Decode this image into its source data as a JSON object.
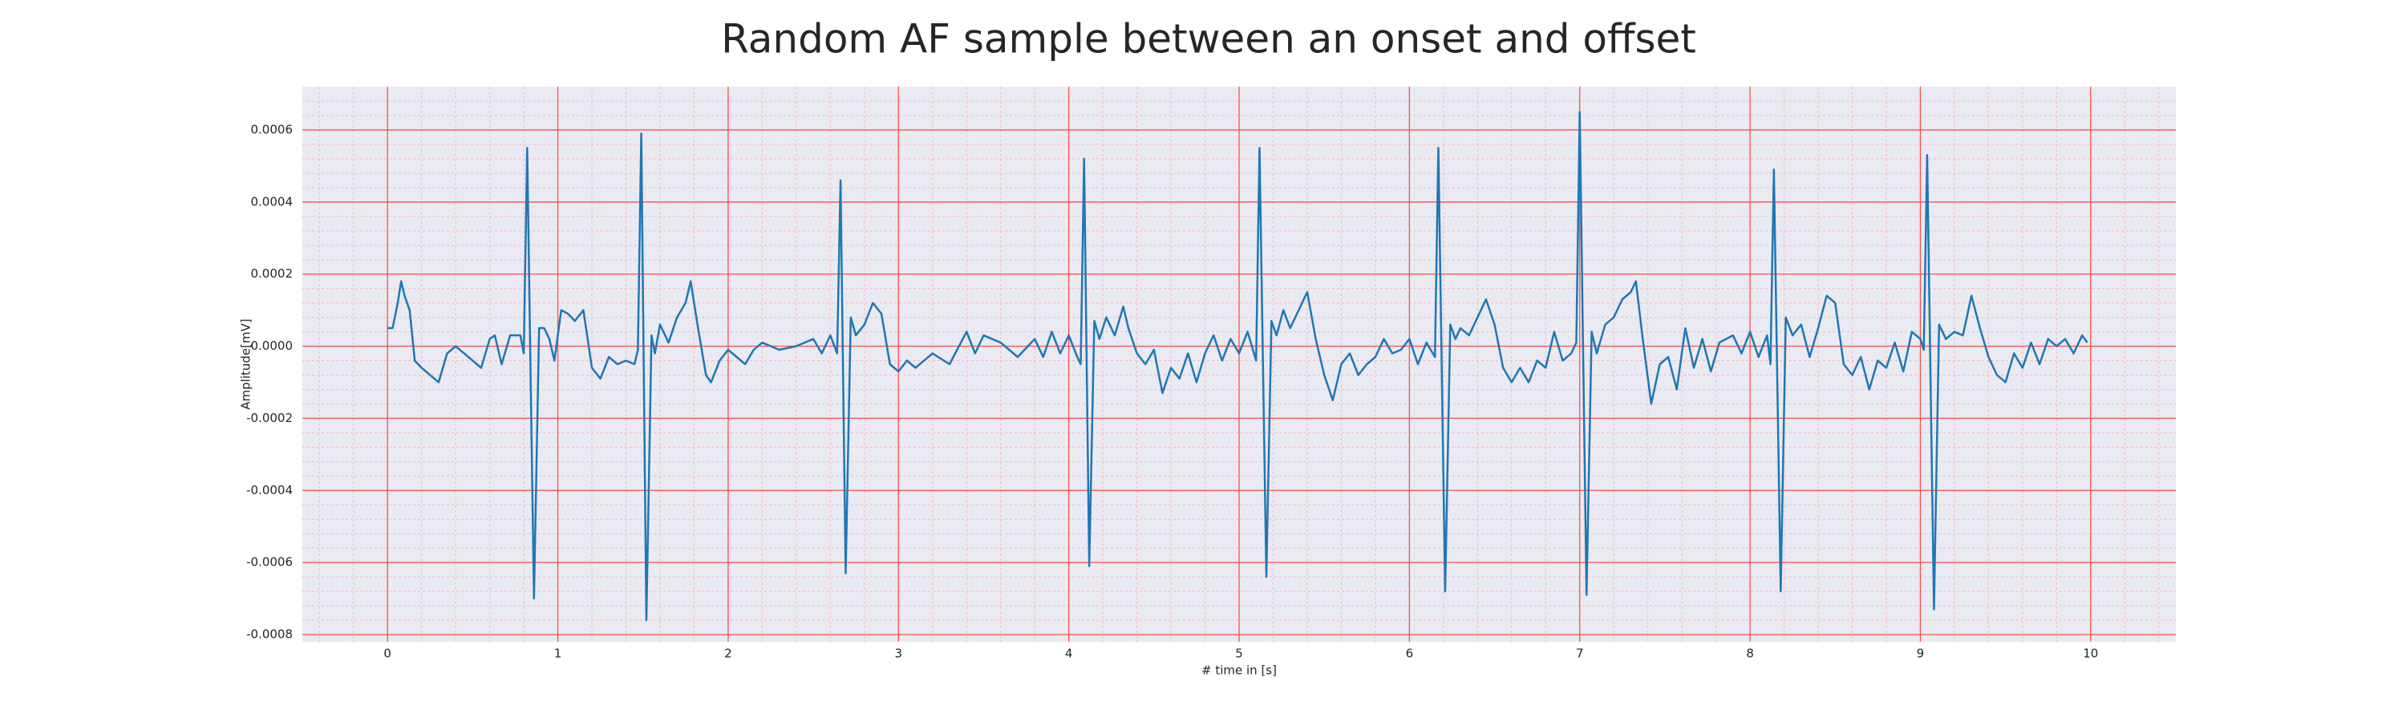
{
  "chart_data": {
    "type": "line",
    "title": "Random AF sample between an onset and offset",
    "xlabel": "# time in [s]",
    "ylabel": "Amplitude[mV]",
    "color": "#1f77b4",
    "grid": true,
    "minor_grid": true,
    "xlim": [
      -0.5,
      10.5
    ],
    "ylim": [
      -0.00082,
      0.00072
    ],
    "xticks": [
      0,
      1,
      2,
      3,
      4,
      5,
      6,
      7,
      8,
      9,
      10
    ],
    "yticks": [
      {
        "value": -0.0008,
        "label": "-0.0008"
      },
      {
        "value": -0.0006,
        "label": "-0.0006"
      },
      {
        "value": -0.0004,
        "label": "-0.0004"
      },
      {
        "value": -0.0002,
        "label": "-0.0002"
      },
      {
        "value": 0,
        "label": "0.0000"
      },
      {
        "value": 0.0002,
        "label": "0.0002"
      },
      {
        "value": 0.0004,
        "label": "0.0004"
      },
      {
        "value": 0.0006,
        "label": "0.0006"
      }
    ],
    "x": [
      0,
      0.03,
      0.06,
      0.08,
      0.1,
      0.13,
      0.16,
      0.2,
      0.25,
      0.3,
      0.35,
      0.4,
      0.45,
      0.5,
      0.55,
      0.6,
      0.63,
      0.67,
      0.72,
      0.78,
      0.8,
      0.82,
      0.86,
      0.89,
      0.92,
      0.95,
      0.98,
      1.02,
      1.06,
      1.1,
      1.15,
      1.2,
      1.25,
      1.3,
      1.35,
      1.4,
      1.45,
      1.47,
      1.49,
      1.52,
      1.55,
      1.57,
      1.6,
      1.65,
      1.7,
      1.75,
      1.78,
      1.82,
      1.87,
      1.9,
      1.95,
      2.0,
      2.05,
      2.1,
      2.15,
      2.2,
      2.3,
      2.4,
      2.5,
      2.55,
      2.6,
      2.64,
      2.66,
      2.69,
      2.72,
      2.75,
      2.8,
      2.85,
      2.9,
      2.95,
      3.0,
      3.05,
      3.1,
      3.2,
      3.3,
      3.4,
      3.45,
      3.5,
      3.6,
      3.7,
      3.8,
      3.85,
      3.9,
      3.95,
      4.0,
      4.05,
      4.07,
      4.09,
      4.12,
      4.15,
      4.18,
      4.22,
      4.27,
      4.32,
      4.35,
      4.4,
      4.45,
      4.5,
      4.55,
      4.6,
      4.65,
      4.7,
      4.75,
      4.8,
      4.85,
      4.9,
      4.95,
      5.0,
      5.05,
      5.1,
      5.12,
      5.16,
      5.19,
      5.22,
      5.26,
      5.3,
      5.35,
      5.4,
      5.45,
      5.5,
      5.55,
      5.6,
      5.65,
      5.7,
      5.75,
      5.8,
      5.85,
      5.9,
      5.95,
      6.0,
      6.05,
      6.1,
      6.15,
      6.17,
      6.21,
      6.24,
      6.27,
      6.3,
      6.35,
      6.4,
      6.45,
      6.5,
      6.55,
      6.6,
      6.65,
      6.7,
      6.75,
      6.8,
      6.85,
      6.9,
      6.95,
      6.98,
      7.0,
      7.04,
      7.07,
      7.1,
      7.15,
      7.2,
      7.25,
      7.3,
      7.33,
      7.37,
      7.42,
      7.47,
      7.52,
      7.57,
      7.62,
      7.67,
      7.72,
      7.77,
      7.82,
      7.9,
      7.95,
      8.0,
      8.05,
      8.1,
      8.12,
      8.14,
      8.18,
      8.21,
      8.25,
      8.3,
      8.35,
      8.4,
      8.45,
      8.5,
      8.55,
      8.6,
      8.65,
      8.7,
      8.75,
      8.8,
      8.85,
      8.9,
      8.95,
      9.0,
      9.02,
      9.04,
      9.08,
      9.11,
      9.15,
      9.2,
      9.25,
      9.3,
      9.35,
      9.4,
      9.45,
      9.5,
      9.55,
      9.6,
      9.65,
      9.7,
      9.75,
      9.8,
      9.85,
      9.9,
      9.95,
      9.98
    ],
    "values": [
      5e-05,
      5e-05,
      0.00012,
      0.00018,
      0.00014,
      0.0001,
      -4e-05,
      -6e-05,
      -8e-05,
      -0.0001,
      -2e-05,
      0,
      -2e-05,
      -4e-05,
      -6e-05,
      2e-05,
      3e-05,
      -5e-05,
      3e-05,
      3e-05,
      -2e-05,
      0.00055,
      -0.0007,
      5e-05,
      5e-05,
      2e-05,
      -4e-05,
      0.0001,
      9e-05,
      7e-05,
      0.0001,
      -6e-05,
      -9e-05,
      -3e-05,
      -5e-05,
      -4e-05,
      -5e-05,
      -1e-05,
      0.00059,
      -0.00076,
      3e-05,
      -2e-05,
      6e-05,
      1e-05,
      8e-05,
      0.00012,
      0.00018,
      6e-05,
      -8e-05,
      -0.0001,
      -4e-05,
      -1e-05,
      -3e-05,
      -5e-05,
      -1e-05,
      1e-05,
      -1e-05,
      0,
      2e-05,
      -2e-05,
      3e-05,
      -2e-05,
      0.00046,
      -0.00063,
      8e-05,
      3e-05,
      6e-05,
      0.00012,
      9e-05,
      -5e-05,
      -7e-05,
      -4e-05,
      -6e-05,
      -2e-05,
      -5e-05,
      4e-05,
      -2e-05,
      3e-05,
      1e-05,
      -3e-05,
      2e-05,
      -3e-05,
      4e-05,
      -2e-05,
      3e-05,
      -3e-05,
      -5e-05,
      0.00052,
      -0.00061,
      7e-05,
      2e-05,
      8e-05,
      3e-05,
      0.00011,
      5e-05,
      -2e-05,
      -5e-05,
      -1e-05,
      -0.00013,
      -6e-05,
      -9e-05,
      -2e-05,
      -0.0001,
      -2e-05,
      3e-05,
      -4e-05,
      2e-05,
      -2e-05,
      4e-05,
      -4e-05,
      0.00055,
      -0.00064,
      7e-05,
      3e-05,
      0.0001,
      5e-05,
      0.0001,
      0.00015,
      2e-05,
      -8e-05,
      -0.00015,
      -5e-05,
      -2e-05,
      -8e-05,
      -5e-05,
      -3e-05,
      2e-05,
      -2e-05,
      -1e-05,
      2e-05,
      -5e-05,
      1e-05,
      -3e-05,
      0.00055,
      -0.00068,
      6e-05,
      2e-05,
      5e-05,
      3e-05,
      8e-05,
      0.00013,
      6e-05,
      -6e-05,
      -0.0001,
      -6e-05,
      -0.0001,
      -4e-05,
      -6e-05,
      4e-05,
      -4e-05,
      -2e-05,
      1e-05,
      0.00065,
      -0.00069,
      4e-05,
      -2e-05,
      6e-05,
      8e-05,
      0.00013,
      0.00015,
      0.00018,
      2e-05,
      -0.00016,
      -5e-05,
      -3e-05,
      -0.00012,
      5e-05,
      -6e-05,
      2e-05,
      -7e-05,
      1e-05,
      3e-05,
      -2e-05,
      4e-05,
      -3e-05,
      3e-05,
      -5e-05,
      0.00049,
      -0.00068,
      8e-05,
      3e-05,
      6e-05,
      -3e-05,
      5e-05,
      0.00014,
      0.00012,
      -5e-05,
      -8e-05,
      -3e-05,
      -0.00012,
      -4e-05,
      -6e-05,
      1e-05,
      -7e-05,
      4e-05,
      2e-05,
      -1e-05,
      0.00053,
      -0.00073,
      6e-05,
      2e-05,
      4e-05,
      3e-05,
      0.00014,
      5e-05,
      -3e-05,
      -8e-05,
      -0.0001,
      -2e-05,
      -6e-05,
      1e-05,
      -5e-05,
      2e-05,
      0,
      2e-05,
      -2e-05,
      3e-05,
      1e-05
    ]
  }
}
